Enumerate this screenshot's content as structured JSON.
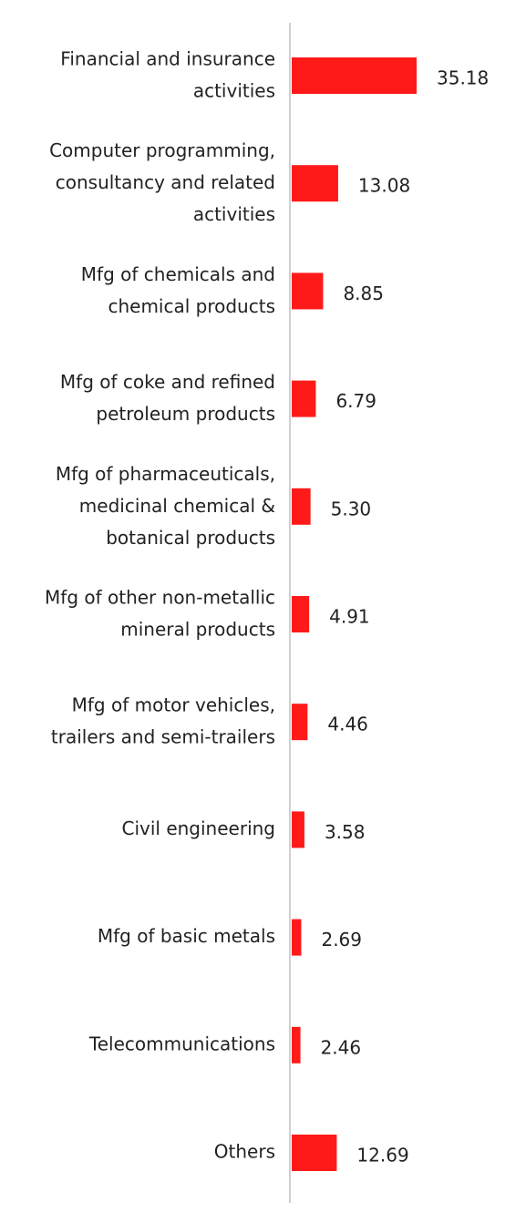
{
  "chart_data": {
    "type": "bar",
    "orientation": "horizontal",
    "categories": [
      "Financial and insurance\nactivities",
      "Computer programming,\nconsultancy and related\nactivities",
      "Mfg of chemicals and\nchemical products",
      "Mfg of coke and refined\npetroleum products",
      "Mfg of pharmaceuticals,\nmedicinal chemical &\nbotanical products",
      "Mfg of other non-metallic\nmineral products",
      "Mfg of motor vehicles,\ntrailers and semi-trailers",
      "Civil engineering",
      "Mfg of basic metals",
      "Telecommunications",
      "Others"
    ],
    "values": [
      35.18,
      13.08,
      8.85,
      6.79,
      5.3,
      4.91,
      4.46,
      3.58,
      2.69,
      2.46,
      12.69
    ],
    "value_labels": [
      "35.18",
      "13.08",
      "8.85",
      "6.79",
      "5.30",
      "4.91",
      "4.46",
      "3.58",
      "2.69",
      "2.46",
      "12.69"
    ],
    "color": "#ff1a1a"
  }
}
